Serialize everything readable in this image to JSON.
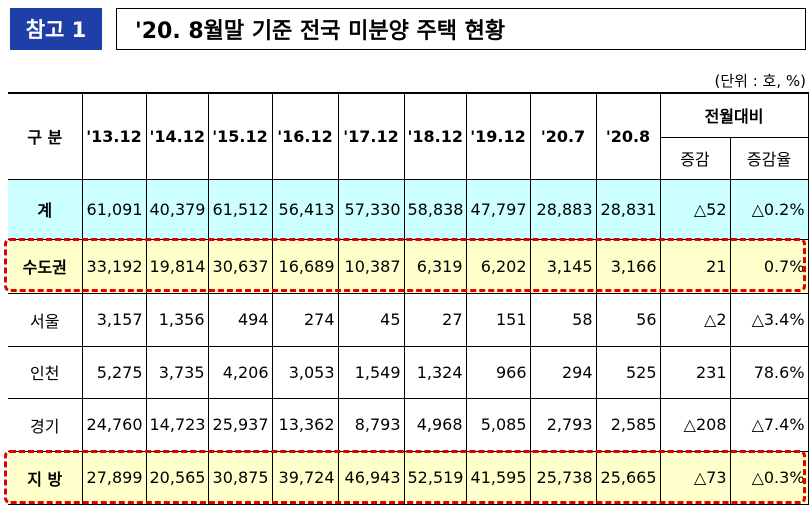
{
  "header": {
    "badge": "참고 1",
    "title": "'20. 8월말 기준 전국 미분양 주택 현황",
    "unit": "(단위 : 호, %)"
  },
  "table": {
    "label_header": "구  분",
    "periods": [
      "'13.12",
      "'14.12",
      "'15.12",
      "'16.12",
      "'17.12",
      "'18.12",
      "'19.12",
      "'20.7",
      "'20.8"
    ],
    "compare_header": "전월대비",
    "change_header": "증감",
    "rate_header": "증감율",
    "rows": [
      {
        "label": "계",
        "values": [
          "61,091",
          "40,379",
          "61,512",
          "56,413",
          "57,330",
          "58,838",
          "47,797",
          "28,883",
          "28,831"
        ],
        "change": "△52",
        "rate": "△0.2%"
      },
      {
        "label": "수도권",
        "values": [
          "33,192",
          "19,814",
          "30,637",
          "16,689",
          "10,387",
          "6,319",
          "6,202",
          "3,145",
          "3,166"
        ],
        "change": "21",
        "rate": "0.7%"
      },
      {
        "label": "서울",
        "values": [
          "3,157",
          "1,356",
          "494",
          "274",
          "45",
          "27",
          "151",
          "58",
          "56"
        ],
        "change": "△2",
        "rate": "△3.4%"
      },
      {
        "label": "인천",
        "values": [
          "5,275",
          "3,735",
          "4,206",
          "3,053",
          "1,549",
          "1,324",
          "966",
          "294",
          "525"
        ],
        "change": "231",
        "rate": "78.6%"
      },
      {
        "label": "경기",
        "values": [
          "24,760",
          "14,723",
          "25,937",
          "13,362",
          "8,793",
          "4,968",
          "5,085",
          "2,793",
          "2,585"
        ],
        "change": "△208",
        "rate": "△7.4%"
      },
      {
        "label": "지  방",
        "values": [
          "27,899",
          "20,565",
          "30,875",
          "39,724",
          "46,943",
          "52,519",
          "41,595",
          "25,738",
          "25,665"
        ],
        "change": "△73",
        "rate": "△0.3%"
      }
    ]
  }
}
